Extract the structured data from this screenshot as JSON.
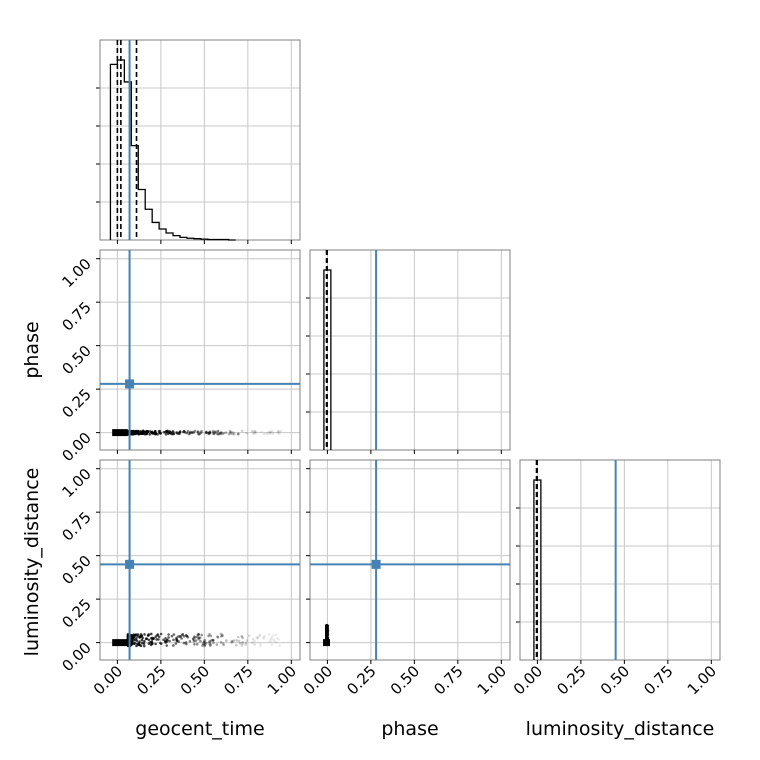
{
  "chart_data": {
    "type": "corner",
    "parameters": [
      "geocent_time",
      "phase",
      "luminosity_distance"
    ],
    "axis_range": [
      -0.1,
      1.05
    ],
    "tick_values": [
      0.0,
      0.25,
      0.5,
      0.75,
      1.0
    ],
    "tick_labels": [
      "0.00",
      "0.25",
      "0.50",
      "0.75",
      "1.00"
    ],
    "colors": {
      "truth": "#4682b4",
      "samples": "#000000",
      "grid": "#c8c8c8",
      "frame": "#808080"
    },
    "truths": {
      "geocent_time": 0.07,
      "phase": 0.28,
      "luminosity_distance": 0.45
    },
    "quantiles": {
      "geocent_time": [
        0.0,
        0.02,
        0.11
      ],
      "phase": [
        -0.005,
        -0.0015
      ],
      "luminosity_distance": [
        -0.005,
        -0.0015
      ]
    },
    "marginals": {
      "geocent_time": {
        "bin_edges": [
          -0.04,
          0.0,
          0.04,
          0.08,
          0.12,
          0.16,
          0.2,
          0.24,
          0.28,
          0.32,
          0.36,
          0.4,
          0.44,
          0.48,
          0.52,
          0.56,
          0.6,
          0.64,
          0.68
        ],
        "counts": [
          400,
          410,
          360,
          215,
          115,
          70,
          40,
          25,
          16,
          10,
          6,
          4,
          3,
          2,
          1,
          1,
          1,
          0
        ]
      },
      "phase": {
        "bin_edges": [
          -0.02,
          0.0,
          0.02
        ],
        "counts": [
          1000,
          1000
        ]
      },
      "luminosity_distance": {
        "bin_edges": [
          -0.02,
          0.0,
          0.02
        ],
        "counts": [
          1000,
          1000
        ]
      }
    },
    "scatter": [
      {
        "x_param": "geocent_time",
        "y_param": "phase",
        "dense_block": {
          "x": [
            -0.03,
            0.06
          ],
          "y": [
            -0.02,
            0.02
          ]
        },
        "band": {
          "x": [
            0.06,
            0.95
          ],
          "y": [
            -0.01,
            0.01
          ]
        }
      },
      {
        "x_param": "geocent_time",
        "y_param": "luminosity_distance",
        "dense_block": {
          "x": [
            -0.03,
            0.06
          ],
          "y": [
            -0.02,
            0.02
          ]
        },
        "band": {
          "x": [
            0.06,
            0.95
          ],
          "y": [
            -0.02,
            0.05
          ]
        }
      },
      {
        "x_param": "phase",
        "y_param": "luminosity_distance",
        "dense_block": {
          "x": [
            -0.025,
            0.015
          ],
          "y": [
            -0.02,
            0.02
          ]
        },
        "band": {
          "x": [
            -0.005,
            0.005
          ],
          "y": [
            0.02,
            0.1
          ]
        }
      }
    ]
  }
}
